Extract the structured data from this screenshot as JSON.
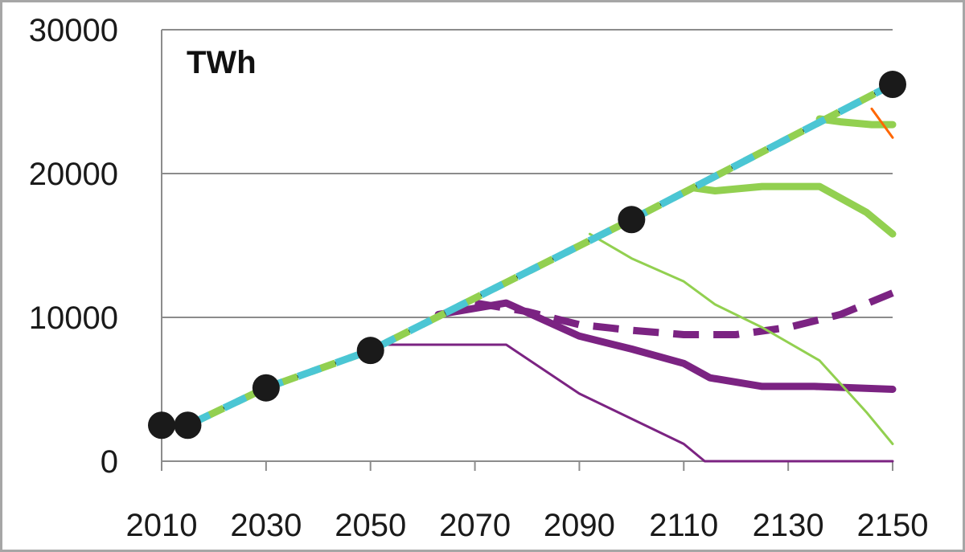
{
  "chart_data": {
    "type": "line",
    "unit_label": "TWh",
    "xlim": [
      2010,
      2150
    ],
    "ylim": [
      0,
      30000
    ],
    "x_ticks": [
      "2010",
      "2030",
      "2050",
      "2070",
      "2090",
      "2110",
      "2130",
      "2150"
    ],
    "y_ticks": [
      "0",
      "10000",
      "20000",
      "30000"
    ],
    "grid": "horizontal",
    "legend": "none",
    "series": [
      {
        "color": "#7b2382",
        "style": "solid",
        "width": "thin",
        "points": [
          [
            2050,
            8100
          ],
          [
            2057,
            8100
          ],
          [
            2076,
            8100
          ],
          [
            2090,
            4700
          ],
          [
            2110,
            1200
          ],
          [
            2114,
            0
          ],
          [
            2150,
            0
          ]
        ]
      },
      {
        "color": "#7b2382",
        "style": "solid",
        "width": "thick",
        "points": [
          [
            2063,
            10200
          ],
          [
            2076,
            11000
          ],
          [
            2090,
            8700
          ],
          [
            2100,
            7800
          ],
          [
            2110,
            6800
          ],
          [
            2115,
            5800
          ],
          [
            2125,
            5200
          ],
          [
            2135,
            5200
          ],
          [
            2150,
            5000
          ]
        ]
      },
      {
        "color": "#7b2382",
        "style": "dashed",
        "width": "thick",
        "points": [
          [
            2070,
            11000
          ],
          [
            2080,
            10400
          ],
          [
            2090,
            9500
          ],
          [
            2100,
            9100
          ],
          [
            2110,
            8800
          ],
          [
            2120,
            8800
          ],
          [
            2130,
            9300
          ],
          [
            2140,
            10200
          ],
          [
            2150,
            11700
          ]
        ]
      },
      {
        "color": "#92d050",
        "style": "solid",
        "width": "thin",
        "points": [
          [
            2092,
            15800
          ],
          [
            2100,
            14100
          ],
          [
            2110,
            12500
          ],
          [
            2116,
            10900
          ],
          [
            2125,
            9300
          ],
          [
            2136,
            7000
          ],
          [
            2145,
            3400
          ],
          [
            2150,
            1200
          ]
        ]
      },
      {
        "color": "#92d050",
        "style": "solid",
        "width": "thick",
        "points": [
          [
            2112,
            19000
          ],
          [
            2116,
            18800
          ],
          [
            2125,
            19100
          ],
          [
            2136,
            19100
          ],
          [
            2145,
            17300
          ],
          [
            2150,
            15800
          ]
        ]
      },
      {
        "color": "#92d050",
        "style": "solid",
        "width": "thick",
        "points": [
          [
            2136,
            23800
          ],
          [
            2140,
            23600
          ],
          [
            2146,
            23400
          ],
          [
            2150,
            23400
          ]
        ]
      },
      {
        "color": "#ff6600",
        "style": "solid",
        "width": "thin",
        "points": [
          [
            2146,
            24500
          ],
          [
            2150,
            22500
          ]
        ]
      },
      {
        "color": "#000000",
        "style": "solid",
        "width": "medium",
        "points": [
          [
            2010,
            2500
          ],
          [
            2015,
            2500
          ],
          [
            2030,
            5100
          ],
          [
            2050,
            7700
          ],
          [
            2100,
            16800
          ],
          [
            2150,
            26200
          ]
        ]
      },
      {
        "color": "#92d050",
        "style": "dashed",
        "width": "thick",
        "points": [
          [
            2010,
            2500
          ],
          [
            2015,
            2500
          ],
          [
            2030,
            5100
          ],
          [
            2050,
            7700
          ],
          [
            2100,
            16800
          ],
          [
            2150,
            26200
          ]
        ]
      },
      {
        "color": "#4bc6d4",
        "style": "dashed",
        "width": "thick",
        "points": [
          [
            2015,
            2500
          ],
          [
            2030,
            5100
          ],
          [
            2050,
            7700
          ],
          [
            2100,
            16800
          ],
          [
            2150,
            26200
          ]
        ]
      }
    ],
    "markers": {
      "color": "#1a1a1a",
      "points": [
        [
          2010,
          2500
        ],
        [
          2015,
          2500
        ],
        [
          2030,
          5100
        ],
        [
          2050,
          7700
        ],
        [
          2100,
          16800
        ],
        [
          2150,
          26200
        ]
      ]
    }
  }
}
